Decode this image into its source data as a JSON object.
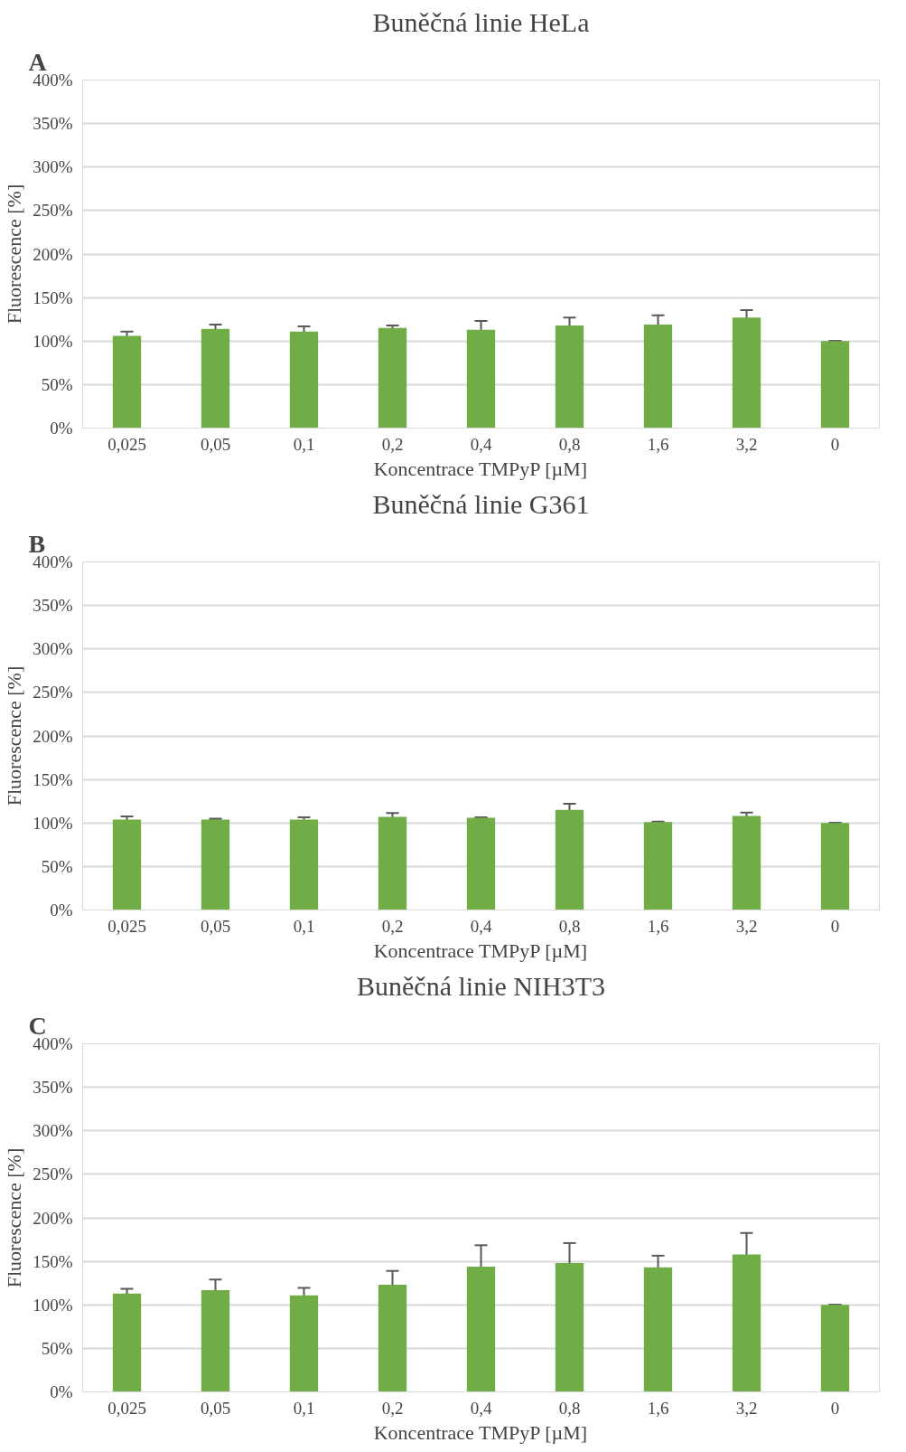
{
  "chart_data": [
    {
      "type": "bar",
      "title": "Buněčná linie HeLa",
      "xlabel": "Koncentrace TMPyP [µM]",
      "ylabel": "Fluorescence [%]",
      "annotations": [
        "A"
      ],
      "categories": [
        "0,025",
        "0,05",
        "0,1",
        "0,2",
        "0,4",
        "0,8",
        "1,6",
        "3,2",
        "0"
      ],
      "values": [
        106,
        114,
        111,
        115,
        113,
        118,
        119,
        127,
        100
      ],
      "errors": [
        5,
        5,
        6,
        3,
        10,
        9,
        10.5,
        8.5,
        0
      ],
      "color": "#70ad47",
      "ylim": [
        0,
        400
      ],
      "yticks": [
        {
          "value": 0,
          "label": "0%"
        },
        {
          "value": 50,
          "label": "50%"
        },
        {
          "value": 100,
          "label": "100%"
        },
        {
          "value": 150,
          "label": "150%"
        },
        {
          "value": 200,
          "label": "200%"
        },
        {
          "value": 250,
          "label": "250%"
        },
        {
          "value": 300,
          "label": "300%"
        },
        {
          "value": 350,
          "label": "350%"
        },
        {
          "value": 400,
          "label": "400%"
        }
      ],
      "grid": "y"
    },
    {
      "type": "bar",
      "title": "Buněčná linie G361",
      "xlabel": "Koncentrace TMPyP [µM]",
      "ylabel": "Fluorescence [%]",
      "annotations": [
        "B"
      ],
      "categories": [
        "0,025",
        "0,05",
        "0,1",
        "0,2",
        "0,4",
        "0,8",
        "1,6",
        "3,2",
        "0"
      ],
      "values": [
        104,
        104,
        104,
        107,
        106,
        115,
        101,
        108,
        100
      ],
      "errors": [
        3.5,
        1,
        2.5,
        4.5,
        0.5,
        7,
        0.5,
        4,
        0
      ],
      "color": "#70ad47",
      "ylim": [
        0,
        400
      ],
      "yticks": [
        {
          "value": 0,
          "label": "0%"
        },
        {
          "value": 50,
          "label": "50%"
        },
        {
          "value": 100,
          "label": "100%"
        },
        {
          "value": 150,
          "label": "150%"
        },
        {
          "value": 200,
          "label": "200%"
        },
        {
          "value": 250,
          "label": "250%"
        },
        {
          "value": 300,
          "label": "300%"
        },
        {
          "value": 350,
          "label": "350%"
        },
        {
          "value": 400,
          "label": "400%"
        }
      ],
      "grid": "y"
    },
    {
      "type": "bar",
      "title": "Buněčná linie NIH3T3",
      "xlabel": "Koncentrace TMPyP [µM]",
      "ylabel": "Fluorescence [%]",
      "annotations": [
        "C"
      ],
      "categories": [
        "0,025",
        "0,05",
        "0,1",
        "0,2",
        "0,4",
        "0,8",
        "1,6",
        "3,2",
        "0"
      ],
      "values": [
        113,
        117,
        111,
        123,
        144,
        148,
        143,
        158,
        100
      ],
      "errors": [
        5.5,
        12,
        8.5,
        16,
        24.5,
        23,
        13.5,
        24.5,
        0
      ],
      "color": "#70ad47",
      "ylim": [
        0,
        400
      ],
      "yticks": [
        {
          "value": 0,
          "label": "0%"
        },
        {
          "value": 50,
          "label": "50%"
        },
        {
          "value": 100,
          "label": "100%"
        },
        {
          "value": 150,
          "label": "150%"
        },
        {
          "value": 200,
          "label": "200%"
        },
        {
          "value": 250,
          "label": "250%"
        },
        {
          "value": 300,
          "label": "300%"
        },
        {
          "value": 350,
          "label": "350%"
        },
        {
          "value": 400,
          "label": "400%"
        }
      ],
      "grid": "y"
    }
  ]
}
